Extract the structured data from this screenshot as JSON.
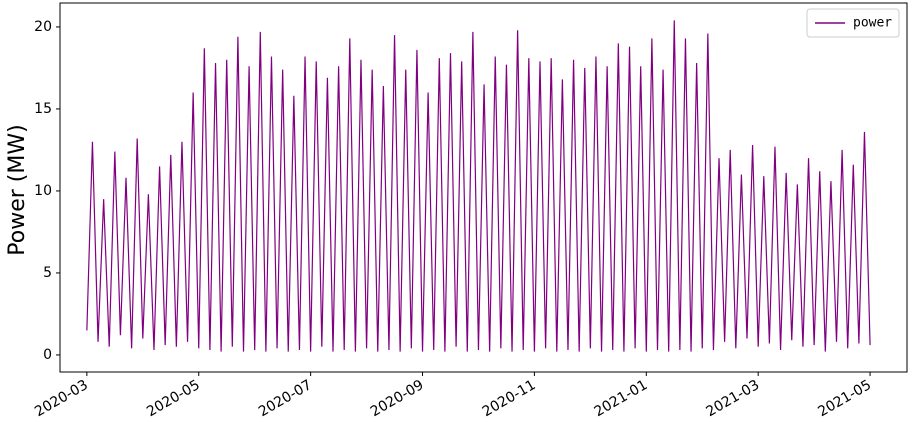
{
  "chart_data": {
    "type": "line",
    "ylabel": "Power (MW)",
    "legend": "upper right",
    "x": [
      3.0,
      3.1,
      3.2,
      3.3,
      3.4,
      3.5,
      3.6,
      3.7,
      3.8,
      3.9,
      4.0,
      4.1,
      4.2,
      4.3,
      4.4,
      4.5,
      4.6,
      4.7,
      4.8,
      4.9,
      5.0,
      5.1,
      5.2,
      5.3,
      5.4,
      5.5,
      5.6,
      5.7,
      5.8,
      5.9,
      6.0,
      6.1,
      6.2,
      6.3,
      6.4,
      6.5,
      6.6,
      6.7,
      6.8,
      6.9,
      7.0,
      7.1,
      7.2,
      7.3,
      7.4,
      7.5,
      7.6,
      7.7,
      7.8,
      7.9,
      8.0,
      8.1,
      8.2,
      8.3,
      8.4,
      8.5,
      8.6,
      8.7,
      8.8,
      8.9,
      9.0,
      9.1,
      9.2,
      9.3,
      9.4,
      9.5,
      9.6,
      9.7,
      9.8,
      9.9,
      10.0,
      10.1,
      10.2,
      10.3,
      10.4,
      10.5,
      10.6,
      10.7,
      10.8,
      10.9,
      11.0,
      11.1,
      11.2,
      11.3,
      11.4,
      11.5,
      11.6,
      11.7,
      11.8,
      11.9,
      12.0,
      12.1,
      12.2,
      12.3,
      12.4,
      12.5,
      12.6,
      12.7,
      12.8,
      12.9,
      13.0,
      13.1,
      13.2,
      13.3,
      13.4,
      13.5,
      13.6,
      13.7,
      13.8,
      13.9,
      14.0,
      14.1,
      14.2,
      14.3,
      14.4,
      14.5,
      14.6,
      14.7,
      14.8,
      14.9,
      15.0,
      15.1,
      15.2,
      15.3,
      15.4,
      15.5,
      15.6,
      15.7,
      15.8,
      15.9,
      16.0,
      16.1,
      16.2,
      16.3,
      16.4,
      16.5,
      16.6,
      16.7,
      16.8,
      16.9,
      17.0
    ],
    "series": [
      {
        "name": "power",
        "color": "#800080",
        "values": [
          1.5,
          13.0,
          0.8,
          9.5,
          0.5,
          12.4,
          1.2,
          10.8,
          0.4,
          13.2,
          1.0,
          9.8,
          0.3,
          11.5,
          0.6,
          12.2,
          0.5,
          13.0,
          0.8,
          16.0,
          0.4,
          18.7,
          0.3,
          17.8,
          0.2,
          18.0,
          0.5,
          19.4,
          0.2,
          17.6,
          0.3,
          19.7,
          0.2,
          18.2,
          0.4,
          17.4,
          0.2,
          15.8,
          0.3,
          18.2,
          0.2,
          17.9,
          0.5,
          16.9,
          0.2,
          17.6,
          0.3,
          19.3,
          0.2,
          18.0,
          0.4,
          17.4,
          0.2,
          16.4,
          0.3,
          19.5,
          0.2,
          17.4,
          0.4,
          18.6,
          0.2,
          16.0,
          0.3,
          18.1,
          0.2,
          18.4,
          0.5,
          17.9,
          0.2,
          19.7,
          0.3,
          16.5,
          0.2,
          18.2,
          0.4,
          17.7,
          0.2,
          19.8,
          0.3,
          18.1,
          0.2,
          17.9,
          0.4,
          18.1,
          0.2,
          16.8,
          0.3,
          18.0,
          0.2,
          17.5,
          0.4,
          18.2,
          0.2,
          17.6,
          0.3,
          19.0,
          0.2,
          18.8,
          0.4,
          17.6,
          0.2,
          19.3,
          0.3,
          17.4,
          0.2,
          20.4,
          0.3,
          19.3,
          0.2,
          17.8,
          0.4,
          19.6,
          0.3,
          12.0,
          0.8,
          12.5,
          0.4,
          11.0,
          1.0,
          12.8,
          0.5,
          10.9,
          0.7,
          12.7,
          0.3,
          11.1,
          0.9,
          10.4,
          0.5,
          12.0,
          0.6,
          11.2,
          0.2,
          10.6,
          0.8,
          12.5,
          0.4,
          11.6,
          0.7,
          13.6,
          0.6
        ]
      }
    ],
    "xlim": [
      2.52,
      17.66
    ],
    "xticks": [
      {
        "value": 3,
        "label": "2020-03"
      },
      {
        "value": 5,
        "label": "2020-05"
      },
      {
        "value": 7,
        "label": "2020-07"
      },
      {
        "value": 9,
        "label": "2020-09"
      },
      {
        "value": 11,
        "label": "2020-11"
      },
      {
        "value": 13,
        "label": "2021-01"
      },
      {
        "value": 15,
        "label": "2021-03"
      },
      {
        "value": 17,
        "label": "2021-05"
      }
    ],
    "ylim": [
      -1.04,
      21.46
    ],
    "yticks": [
      0,
      5,
      10,
      15,
      20
    ]
  }
}
